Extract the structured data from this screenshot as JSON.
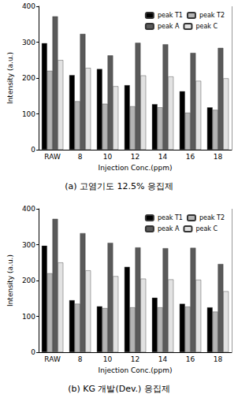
{
  "chart_data": [
    {
      "type": "bar",
      "title": "(a) 고염기도 12.5% 응집제",
      "x_label": "Injection Conc.(ppm)",
      "y_label": "Intensity (a.u.)",
      "categories": [
        "RAW",
        "8",
        "10",
        "12",
        "14",
        "16",
        "18"
      ],
      "series": [
        {
          "name": "peak T1",
          "color": "#000000",
          "values": [
            297,
            208,
            225,
            180,
            127,
            163,
            118
          ]
        },
        {
          "name": "peak T2",
          "color": "#b4b4b4",
          "values": [
            220,
            135,
            128,
            121,
            118,
            103,
            111
          ]
        },
        {
          "name": "peak A",
          "color": "#5a5a5a",
          "values": [
            372,
            323,
            263,
            298,
            294,
            270,
            284
          ]
        },
        {
          "name": "peak C",
          "color": "#e2e2e2",
          "values": [
            250,
            228,
            177,
            207,
            204,
            192,
            199
          ]
        }
      ],
      "ylim": [
        0,
        400
      ],
      "yticks": [
        0,
        100,
        200,
        300,
        400
      ],
      "grid": false,
      "legend": "upper right"
    },
    {
      "type": "bar",
      "title": "(b) KG 개발(Dev.) 응집제",
      "x_label": "Injection Conc.(ppm)",
      "y_label": "Intensity (a.u.)",
      "categories": [
        "RAW",
        "8",
        "10",
        "12",
        "14",
        "16",
        "18"
      ],
      "series": [
        {
          "name": "peak T1",
          "color": "#000000",
          "values": [
            297,
            145,
            128,
            238,
            152,
            135,
            125
          ]
        },
        {
          "name": "peak T2",
          "color": "#b4b4b4",
          "values": [
            220,
            135,
            123,
            125,
            125,
            127,
            113
          ]
        },
        {
          "name": "peak A",
          "color": "#5a5a5a",
          "values": [
            372,
            332,
            305,
            292,
            290,
            291,
            246
          ]
        },
        {
          "name": "peak C",
          "color": "#e2e2e2",
          "values": [
            250,
            228,
            212,
            205,
            203,
            202,
            170
          ]
        }
      ],
      "ylim": [
        0,
        400
      ],
      "yticks": [
        0,
        100,
        200,
        300,
        400
      ],
      "grid": false,
      "legend": "upper right"
    }
  ]
}
